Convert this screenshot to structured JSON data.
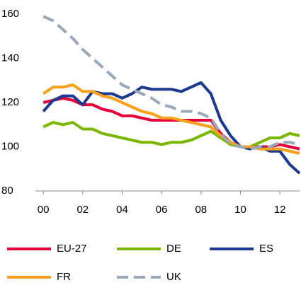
{
  "chart_data": {
    "type": "line",
    "x": [
      0,
      0.5,
      1,
      1.5,
      2,
      2.5,
      3,
      3.5,
      4,
      4.5,
      5,
      5.5,
      6,
      6.5,
      7,
      7.5,
      8,
      8.5,
      9,
      9.5,
      10,
      10.5,
      11,
      11.5,
      12,
      12.5,
      13
    ],
    "xlim": [
      -0.4,
      13.0
    ],
    "xticks": [
      {
        "value": 0,
        "label": "00"
      },
      {
        "value": 2,
        "label": "02"
      },
      {
        "value": 4,
        "label": "04"
      },
      {
        "value": 6,
        "label": "06"
      },
      {
        "value": 8,
        "label": "08"
      },
      {
        "value": 10,
        "label": "10"
      },
      {
        "value": 12,
        "label": "12"
      }
    ],
    "ylim": [
      80,
      160
    ],
    "yticks": [
      80,
      100,
      120,
      140,
      160
    ],
    "grid": false,
    "legend": "bottom",
    "series": [
      {
        "name": "EU-27",
        "color": "#e3003b",
        "dashed": false,
        "values": [
          120,
          121,
          122,
          121,
          119,
          119,
          117,
          116,
          114,
          114,
          113,
          112,
          112,
          112,
          112,
          112,
          112,
          112,
          106,
          102,
          100,
          100,
          100,
          100,
          101,
          100,
          99
        ]
      },
      {
        "name": "DE",
        "color": "#7ab800",
        "dashed": false,
        "values": [
          109,
          111,
          110,
          111,
          108,
          108,
          106,
          105,
          104,
          103,
          102,
          102,
          101,
          102,
          102,
          103,
          105,
          107,
          104,
          101,
          100,
          100,
          102,
          104,
          104,
          106,
          105
        ]
      },
      {
        "name": "ES",
        "color": "#1c3a8f",
        "dashed": false,
        "values": [
          116,
          121,
          123,
          123,
          119,
          125,
          124,
          124,
          122,
          124,
          127,
          126,
          126,
          126,
          125,
          127,
          129,
          124,
          112,
          105,
          100,
          99,
          100,
          98,
          98,
          92,
          88
        ]
      },
      {
        "name": "FR",
        "color": "#f9a11b",
        "dashed": false,
        "values": [
          124,
          127,
          127,
          128,
          125,
          125,
          123,
          122,
          120,
          118,
          116,
          115,
          113,
          113,
          112,
          111,
          110,
          109,
          105,
          102,
          100,
          100,
          99,
          99,
          99,
          98,
          97
        ]
      },
      {
        "name": "UK",
        "color": "#9aa9ba",
        "dashed": true,
        "values": [
          159,
          157,
          153,
          149,
          144,
          140,
          136,
          132,
          128,
          126,
          124,
          122,
          119,
          118,
          116,
          116,
          115,
          113,
          106,
          101,
          100,
          99,
          100,
          100,
          102,
          102,
          101
        ]
      }
    ]
  }
}
